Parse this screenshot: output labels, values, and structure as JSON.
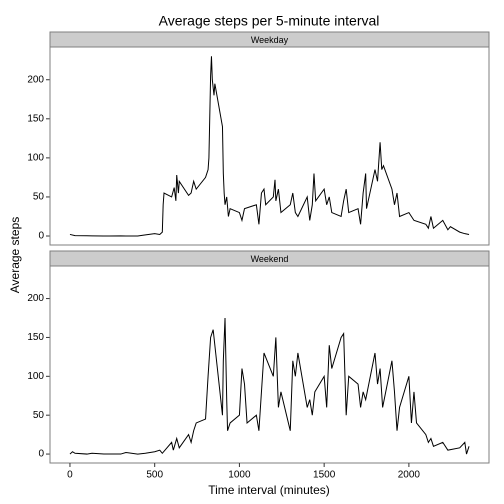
{
  "chart_data": {
    "type": "line",
    "title": "Average steps per 5-minute interval",
    "xlabel": "Time interval (minutes)",
    "ylabel": "Average steps",
    "xlim": [
      -117.75,
      2472.75
    ],
    "ylim": [
      -11.5,
      241.9
    ],
    "xticks": [
      0,
      500,
      1000,
      1500,
      2000
    ],
    "yticks": [
      0,
      50,
      100,
      150,
      200
    ],
    "grid": false,
    "series": [
      {
        "name": "Weekday",
        "color": "#000000",
        "x": [
          0,
          30,
          100,
          130,
          200,
          230,
          300,
          330,
          400,
          430,
          500,
          530,
          545,
          550,
          555,
          600,
          615,
          625,
          630,
          640,
          645,
          700,
          715,
          730,
          745,
          800,
          815,
          820,
          830,
          835,
          840,
          850,
          855,
          900,
          905,
          910,
          915,
          925,
          935,
          945,
          1000,
          1015,
          1030,
          1100,
          1115,
          1130,
          1145,
          1155,
          1200,
          1210,
          1215,
          1230,
          1245,
          1300,
          1315,
          1330,
          1345,
          1400,
          1415,
          1430,
          1440,
          1450,
          1500,
          1515,
          1530,
          1545,
          1600,
          1615,
          1630,
          1645,
          1700,
          1715,
          1730,
          1745,
          1750,
          1800,
          1815,
          1830,
          1840,
          1850,
          1900,
          1915,
          1930,
          1945,
          2000,
          2030,
          2100,
          2115,
          2130,
          2145,
          2200,
          2230,
          2245,
          2300,
          2330,
          2355
        ],
        "values": [
          2,
          0.5,
          0.4,
          0.2,
          0,
          0.1,
          0.2,
          0.1,
          0,
          1,
          3,
          2,
          5,
          40,
          55,
          50,
          62,
          45,
          78,
          55,
          70,
          52,
          55,
          70,
          60,
          75,
          85,
          100,
          205,
          230,
          200,
          180,
          195,
          140,
          80,
          55,
          40,
          50,
          25,
          35,
          30,
          20,
          35,
          40,
          15,
          55,
          60,
          40,
          50,
          72,
          45,
          60,
          30,
          40,
          55,
          30,
          25,
          50,
          20,
          40,
          80,
          45,
          60,
          40,
          50,
          30,
          25,
          45,
          60,
          30,
          35,
          15,
          55,
          80,
          35,
          85,
          70,
          120,
          85,
          90,
          60,
          40,
          55,
          25,
          30,
          20,
          15,
          10,
          25,
          10,
          20,
          8,
          12,
          5,
          3,
          2
        ]
      },
      {
        "name": "Weekend",
        "color": "#000000",
        "x": [
          0,
          15,
          30,
          100,
          130,
          200,
          300,
          330,
          400,
          445,
          500,
          530,
          545,
          600,
          610,
          630,
          645,
          700,
          715,
          730,
          745,
          800,
          815,
          830,
          845,
          900,
          905,
          915,
          925,
          930,
          945,
          1000,
          1015,
          1030,
          1045,
          1100,
          1115,
          1130,
          1145,
          1200,
          1215,
          1230,
          1245,
          1300,
          1315,
          1330,
          1345,
          1400,
          1415,
          1430,
          1445,
          1500,
          1515,
          1530,
          1545,
          1600,
          1615,
          1630,
          1645,
          1700,
          1715,
          1730,
          1745,
          1800,
          1815,
          1830,
          1845,
          1900,
          1915,
          1930,
          1945,
          2000,
          2015,
          2030,
          2045,
          2100,
          2115,
          2130,
          2145,
          2200,
          2230,
          2300,
          2330,
          2340,
          2355
        ],
        "values": [
          0,
          3,
          1,
          0,
          1,
          0,
          0,
          2,
          0,
          1,
          3,
          5,
          1,
          15,
          5,
          20,
          8,
          25,
          15,
          30,
          40,
          45,
          100,
          150,
          160,
          50,
          120,
          175,
          70,
          30,
          40,
          50,
          110,
          90,
          40,
          50,
          30,
          80,
          130,
          100,
          150,
          60,
          80,
          30,
          120,
          100,
          130,
          60,
          70,
          50,
          80,
          100,
          60,
          140,
          110,
          150,
          155,
          50,
          100,
          90,
          60,
          80,
          70,
          130,
          90,
          110,
          60,
          120,
          80,
          30,
          60,
          100,
          40,
          80,
          40,
          25,
          15,
          20,
          10,
          15,
          5,
          8,
          15,
          0,
          10
        ]
      }
    ]
  }
}
